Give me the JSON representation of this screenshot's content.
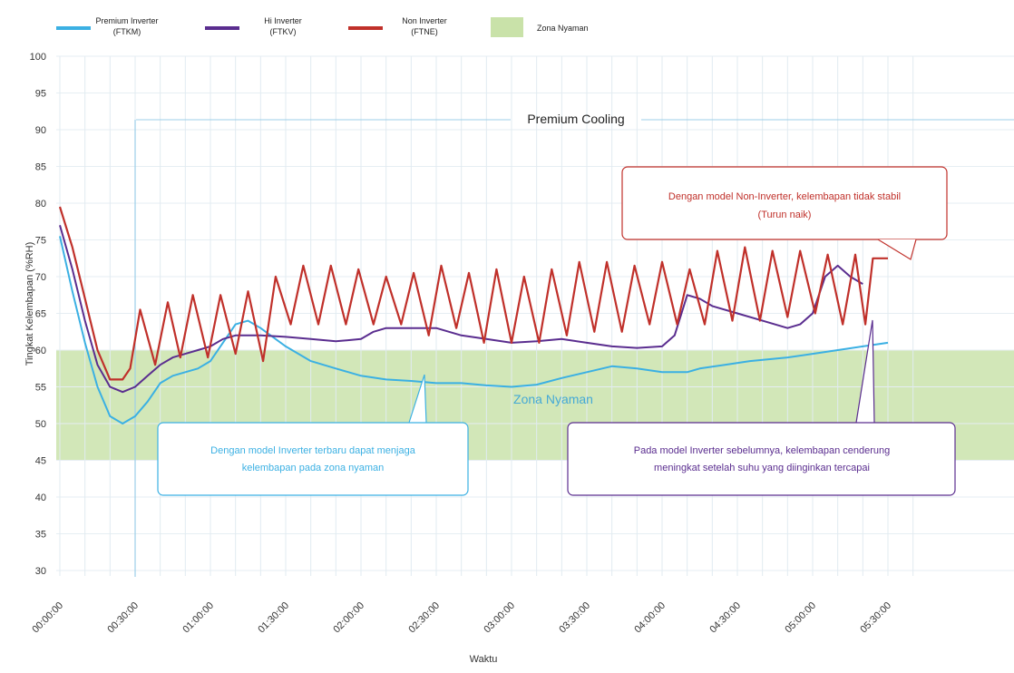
{
  "chart_data": {
    "type": "line",
    "xlabel": "Waktu",
    "ylabel": "Tingkat Kelembapan (%RH)",
    "ylim": [
      30,
      100
    ],
    "yticks": [
      100,
      95,
      90,
      85,
      80,
      75,
      70,
      65,
      60,
      55,
      50,
      45,
      40,
      35,
      30
    ],
    "xticks": [
      "00:00:00",
      "00:30:00",
      "01:00:00",
      "01:30:00",
      "02:00:00",
      "02:30:00",
      "03:00:00",
      "03:30:00",
      "04:00:00",
      "04:30:00",
      "05:00:00",
      "05:30:00"
    ],
    "grid": true,
    "legend": {
      "placement": "top",
      "entries": [
        {
          "label_line1": "Premium Inverter",
          "label_line2": "(FTKM)",
          "color": "#3bb0e3",
          "kind": "line"
        },
        {
          "label_line1": "Hi Inverter",
          "label_line2": "(FTKV)",
          "color": "#5a2d8f",
          "kind": "line"
        },
        {
          "label_line1": "Non Inverter",
          "label_line2": "(FTNE)",
          "color": "#c0302a",
          "kind": "line"
        },
        {
          "label_line1": "Zona Nyaman",
          "label_line2": "",
          "color": "#c9e2a9",
          "kind": "area"
        }
      ]
    },
    "zone": {
      "label": "Zona Nyaman",
      "from": 45,
      "to": 60,
      "color": "#d2e7b8"
    },
    "section_label": "Premium Cooling",
    "series": [
      {
        "name": "Premium Inverter (FTKM)",
        "color": "#3bb0e3",
        "points": [
          [
            0,
            75.5
          ],
          [
            5,
            68
          ],
          [
            10,
            61
          ],
          [
            15,
            55
          ],
          [
            20,
            51
          ],
          [
            25,
            50
          ],
          [
            30,
            51
          ],
          [
            35,
            53
          ],
          [
            40,
            55.5
          ],
          [
            45,
            56.5
          ],
          [
            50,
            57
          ],
          [
            55,
            57.5
          ],
          [
            60,
            58.5
          ],
          [
            65,
            61
          ],
          [
            70,
            63.5
          ],
          [
            75,
            64
          ],
          [
            80,
            63
          ],
          [
            90,
            60.5
          ],
          [
            100,
            58.5
          ],
          [
            110,
            57.5
          ],
          [
            120,
            56.5
          ],
          [
            130,
            56
          ],
          [
            140,
            55.8
          ],
          [
            150,
            55.5
          ],
          [
            160,
            55.5
          ],
          [
            170,
            55.2
          ],
          [
            180,
            55
          ],
          [
            190,
            55.3
          ],
          [
            200,
            56.2
          ],
          [
            210,
            57
          ],
          [
            220,
            57.8
          ],
          [
            230,
            57.5
          ],
          [
            240,
            57
          ],
          [
            250,
            57
          ],
          [
            255,
            57.5
          ],
          [
            265,
            58
          ],
          [
            275,
            58.5
          ],
          [
            290,
            59
          ],
          [
            300,
            59.5
          ],
          [
            310,
            60
          ],
          [
            320,
            60.5
          ],
          [
            330,
            61
          ]
        ]
      },
      {
        "name": "Hi Inverter (FTKV)",
        "color": "#5a2d8f",
        "points": [
          [
            0,
            77
          ],
          [
            5,
            71
          ],
          [
            10,
            64
          ],
          [
            15,
            58
          ],
          [
            20,
            55
          ],
          [
            25,
            54.3
          ],
          [
            30,
            55
          ],
          [
            35,
            56.5
          ],
          [
            40,
            58
          ],
          [
            45,
            59
          ],
          [
            50,
            59.5
          ],
          [
            55,
            60
          ],
          [
            60,
            60.5
          ],
          [
            65,
            61.5
          ],
          [
            70,
            62
          ],
          [
            80,
            62
          ],
          [
            90,
            61.8
          ],
          [
            100,
            61.5
          ],
          [
            110,
            61.2
          ],
          [
            120,
            61.5
          ],
          [
            125,
            62.5
          ],
          [
            130,
            63
          ],
          [
            140,
            63
          ],
          [
            150,
            63
          ],
          [
            160,
            62
          ],
          [
            170,
            61.5
          ],
          [
            180,
            61
          ],
          [
            190,
            61.2
          ],
          [
            200,
            61.5
          ],
          [
            210,
            61
          ],
          [
            220,
            60.5
          ],
          [
            230,
            60.3
          ],
          [
            240,
            60.5
          ],
          [
            245,
            62
          ],
          [
            250,
            67.5
          ],
          [
            255,
            67
          ],
          [
            260,
            66
          ],
          [
            270,
            65
          ],
          [
            280,
            64
          ],
          [
            290,
            63
          ],
          [
            295,
            63.5
          ],
          [
            300,
            65
          ],
          [
            305,
            70
          ],
          [
            310,
            71.5
          ],
          [
            315,
            70
          ],
          [
            320,
            69
          ]
        ]
      },
      {
        "name": "Non Inverter (FTNE)",
        "color": "#c0302a",
        "points": [
          [
            0,
            79.5
          ],
          [
            5,
            74
          ],
          [
            10,
            67
          ],
          [
            15,
            60
          ],
          [
            20,
            56
          ],
          [
            25,
            56
          ],
          [
            28,
            57.5
          ],
          [
            32,
            65.5
          ],
          [
            38,
            58
          ],
          [
            43,
            66.5
          ],
          [
            48,
            59
          ],
          [
            53,
            67.5
          ],
          [
            59,
            59
          ],
          [
            64,
            67.5
          ],
          [
            70,
            59.5
          ],
          [
            75,
            68
          ],
          [
            81,
            58.5
          ],
          [
            86,
            70
          ],
          [
            92,
            63.5
          ],
          [
            97,
            71.5
          ],
          [
            103,
            63.5
          ],
          [
            108,
            71.5
          ],
          [
            114,
            63.5
          ],
          [
            119,
            71
          ],
          [
            125,
            63.5
          ],
          [
            130,
            70
          ],
          [
            136,
            63.5
          ],
          [
            141,
            70.5
          ],
          [
            147,
            62
          ],
          [
            152,
            71.5
          ],
          [
            158,
            63
          ],
          [
            163,
            70.5
          ],
          [
            169,
            61
          ],
          [
            174,
            71
          ],
          [
            180,
            61
          ],
          [
            185,
            70
          ],
          [
            191,
            61
          ],
          [
            196,
            71
          ],
          [
            202,
            62
          ],
          [
            207,
            72
          ],
          [
            213,
            62.5
          ],
          [
            218,
            72
          ],
          [
            224,
            62.5
          ],
          [
            229,
            71.5
          ],
          [
            235,
            63.5
          ],
          [
            240,
            72
          ],
          [
            246,
            63.5
          ],
          [
            251,
            71
          ],
          [
            257,
            63.5
          ],
          [
            262,
            73.5
          ],
          [
            268,
            64
          ],
          [
            273,
            74
          ],
          [
            279,
            64
          ],
          [
            284,
            73.5
          ],
          [
            290,
            64.5
          ],
          [
            295,
            73.5
          ],
          [
            301,
            65
          ],
          [
            306,
            73
          ],
          [
            312,
            63.5
          ],
          [
            317,
            73
          ],
          [
            321,
            63.5
          ],
          [
            324,
            72.5
          ],
          [
            330,
            72.5
          ]
        ]
      }
    ],
    "annotations": [
      {
        "line1": "Dengan model Non-Inverter, kelembapan tidak stabil",
        "line2": "(Turun naik)",
        "color": "#c0302a"
      },
      {
        "line1": "Dengan model Inverter terbaru dapat menjaga",
        "line2": "kelembapan pada zona nyaman",
        "color": "#3bb0e3"
      },
      {
        "line1": "Pada model Inverter sebelumnya, kelembapan cenderung",
        "line2": "meningkat setelah suhu yang diinginkan tercapai",
        "color": "#5a2d8f"
      }
    ]
  }
}
